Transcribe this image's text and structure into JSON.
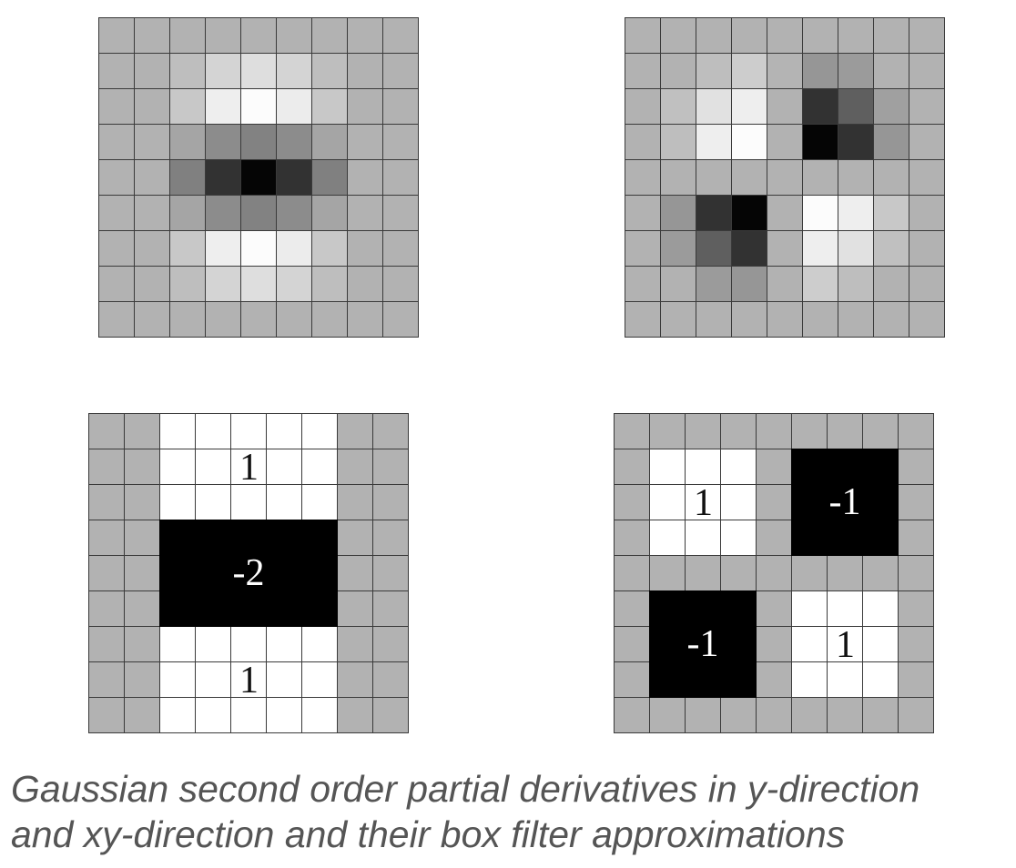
{
  "figures": {
    "gaussian_yy": {
      "levels": [
        [
          178,
          178,
          178,
          178,
          178,
          178,
          178,
          178,
          178
        ],
        [
          178,
          178,
          190,
          212,
          222,
          212,
          190,
          178,
          178
        ],
        [
          178,
          178,
          200,
          238,
          252,
          236,
          200,
          178,
          178
        ],
        [
          178,
          178,
          165,
          140,
          130,
          140,
          165,
          178,
          178
        ],
        [
          178,
          178,
          128,
          50,
          5,
          50,
          128,
          178,
          178
        ],
        [
          178,
          178,
          165,
          140,
          130,
          140,
          165,
          178,
          178
        ],
        [
          178,
          178,
          200,
          238,
          252,
          236,
          200,
          178,
          178
        ],
        [
          178,
          178,
          190,
          212,
          222,
          212,
          190,
          178,
          178
        ],
        [
          178,
          178,
          178,
          178,
          178,
          178,
          178,
          178,
          178
        ]
      ]
    },
    "gaussian_xy": {
      "levels": [
        [
          178,
          178,
          178,
          178,
          178,
          178,
          178,
          178,
          178
        ],
        [
          178,
          178,
          190,
          205,
          180,
          150,
          155,
          178,
          178
        ],
        [
          178,
          192,
          225,
          238,
          178,
          50,
          95,
          160,
          178
        ],
        [
          178,
          190,
          238,
          252,
          178,
          5,
          50,
          150,
          178
        ],
        [
          178,
          178,
          178,
          178,
          178,
          178,
          178,
          178,
          178
        ],
        [
          178,
          150,
          50,
          5,
          178,
          252,
          238,
          200,
          178
        ],
        [
          178,
          155,
          95,
          50,
          178,
          238,
          225,
          192,
          178
        ],
        [
          178,
          178,
          155,
          150,
          178,
          205,
          190,
          178,
          178
        ],
        [
          178,
          178,
          178,
          178,
          178,
          178,
          178,
          178,
          178
        ]
      ]
    },
    "box_yy": {
      "regions": [
        {
          "col": 2,
          "row": 0,
          "w": 5,
          "h": 3,
          "fill": "white",
          "label": "1"
        },
        {
          "col": 2,
          "row": 3,
          "w": 5,
          "h": 3,
          "fill": "black",
          "label": "-2"
        },
        {
          "col": 2,
          "row": 6,
          "w": 5,
          "h": 3,
          "fill": "white",
          "label": "1"
        }
      ]
    },
    "box_xy": {
      "regions": [
        {
          "col": 1,
          "row": 1,
          "w": 3,
          "h": 3,
          "fill": "white",
          "label": "1"
        },
        {
          "col": 5,
          "row": 1,
          "w": 3,
          "h": 3,
          "fill": "black",
          "label": "-1"
        },
        {
          "col": 1,
          "row": 5,
          "w": 3,
          "h": 3,
          "fill": "black",
          "label": "-1"
        },
        {
          "col": 5,
          "row": 5,
          "w": 3,
          "h": 3,
          "fill": "white",
          "label": "1"
        }
      ]
    }
  },
  "colors": {
    "gray": "#b2b2b2",
    "white": "#ffffff",
    "black": "#000000",
    "grid_line": "#3a3a3a",
    "caption": "#555555"
  },
  "caption": {
    "line1": "Gaussian second order partial derivatives in y-direction",
    "line2": "and xy-direction and their box filter approximations"
  }
}
